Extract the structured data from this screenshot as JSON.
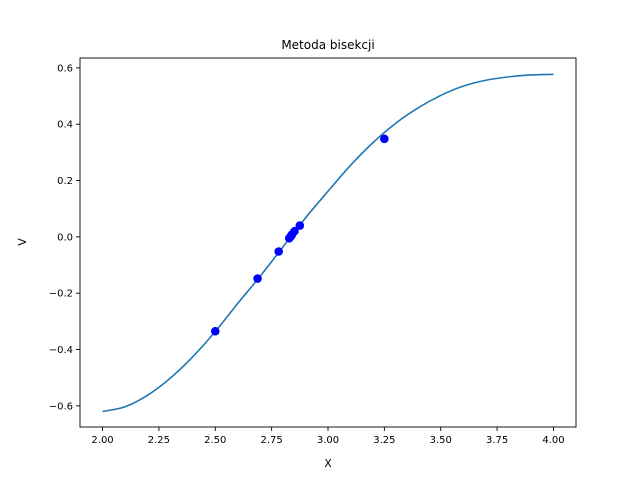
{
  "chart_data": {
    "type": "line",
    "title": "Metoda bisekcji",
    "xlabel": "X",
    "ylabel": "V",
    "xlim": [
      1.9,
      4.1
    ],
    "ylim": [
      -0.675,
      0.635
    ],
    "x_ticks": [
      2.0,
      2.25,
      2.5,
      2.75,
      3.0,
      3.25,
      3.5,
      3.75,
      4.0
    ],
    "x_tick_labels": [
      "2.00",
      "2.25",
      "2.50",
      "2.75",
      "3.00",
      "3.25",
      "3.50",
      "3.75",
      "4.00"
    ],
    "y_ticks": [
      -0.6,
      -0.4,
      -0.2,
      0.0,
      0.2,
      0.4,
      0.6
    ],
    "y_tick_labels": [
      "−0.6",
      "−0.4",
      "−0.2",
      "0.0",
      "0.2",
      "0.4",
      "0.6"
    ],
    "grid": false,
    "legend": "none",
    "series": [
      {
        "kind": "line",
        "color": "#1f77b4",
        "x": [
          2.0,
          2.1,
          2.2,
          2.3,
          2.4,
          2.5,
          2.6,
          2.7,
          2.8,
          2.9,
          3.0,
          3.1,
          3.2,
          3.3,
          3.4,
          3.5,
          3.6,
          3.7,
          3.8,
          3.9,
          4.0
        ],
        "y": [
          -0.62,
          -0.603,
          -0.562,
          -0.502,
          -0.426,
          -0.336,
          -0.236,
          -0.139,
          -0.036,
          0.067,
          0.162,
          0.254,
          0.335,
          0.403,
          0.458,
          0.502,
          0.535,
          0.556,
          0.568,
          0.575,
          0.577
        ]
      },
      {
        "kind": "scatter",
        "color": "#0000ff",
        "x": [
          2.5,
          3.25,
          2.6875,
          2.875,
          2.78125,
          2.828125,
          2.8515625,
          2.8398,
          2.834,
          2.8369
        ],
        "y": [
          -0.335,
          0.348,
          -0.148,
          0.04,
          -0.052,
          -0.005,
          0.02,
          0.008,
          0.001,
          0.004
        ]
      }
    ]
  }
}
